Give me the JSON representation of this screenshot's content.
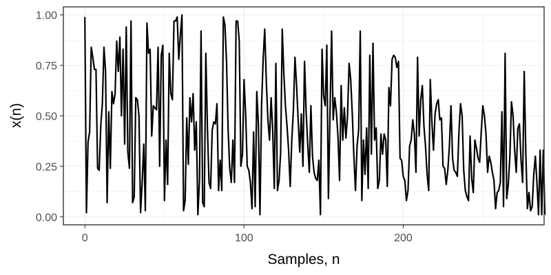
{
  "chart_data": {
    "type": "line",
    "title": "",
    "xlabel": "Samples, n",
    "ylabel": "x(n)",
    "xlim": [
      -13.5,
      288.5
    ],
    "ylim": [
      -0.04,
      1.04
    ],
    "x_ticks": [
      0,
      100,
      200
    ],
    "x_tick_labels": [
      "0",
      "100",
      "200"
    ],
    "y_ticks": [
      0,
      0.25,
      0.5,
      0.75,
      1.0
    ],
    "y_tick_labels": [
      "0.00",
      "0.25",
      "0.50",
      "0.75",
      "1.00"
    ],
    "grid": true,
    "legend": "none",
    "series": [
      {
        "color": "#000000",
        "values": [
          0.99,
          0.02,
          0.37,
          0.42,
          0.84,
          0.79,
          0.73,
          0.73,
          0.24,
          0.23,
          0.45,
          0.56,
          0.84,
          0.72,
          0.07,
          0.52,
          0.24,
          0.62,
          0.56,
          0.61,
          0.87,
          0.72,
          0.89,
          0.5,
          0.83,
          0.36,
          0.94,
          0.32,
          0.24,
          0.97,
          0.07,
          0.1,
          0.59,
          0.58,
          0.5,
          0.02,
          0.17,
          0.36,
          0.03,
          0.96,
          0.81,
          0.83,
          0.4,
          0.55,
          0.54,
          0.53,
          0.84,
          0.25,
          0.8,
          0.85,
          0.08,
          0.38,
          0.16,
          0.81,
          0.61,
          0.58,
          0.97,
          0.97,
          0.99,
          0.78,
          0.9,
          1.0,
          0.03,
          0.08,
          0.49,
          0.26,
          0.59,
          0.47,
          0.61,
          0.33,
          0.47,
          0.01,
          0.18,
          0.92,
          0.07,
          0.05,
          0.81,
          0.44,
          0.17,
          0.14,
          0.43,
          0.47,
          0.46,
          0.56,
          0.13,
          0.28,
          0.13,
          0.99,
          0.95,
          0.77,
          0.43,
          0.24,
          0.17,
          0.38,
          0.17,
          0.97,
          0.97,
          0.87,
          0.25,
          0.31,
          0.68,
          0.51,
          0.25,
          0.23,
          0.17,
          0.04,
          0.42,
          0.05,
          0.62,
          0.46,
          0.01,
          0.55,
          0.78,
          0.93,
          0.67,
          0.48,
          0.38,
          0.59,
          0.43,
          0.14,
          0.76,
          0.13,
          0.18,
          0.32,
          0.93,
          0.71,
          0.55,
          0.45,
          0.33,
          0.15,
          0.38,
          0.53,
          0.79,
          0.65,
          0.48,
          0.32,
          0.51,
          0.25,
          0.77,
          0.52,
          0.36,
          0.22,
          0.55,
          0.3,
          0.22,
          0.19,
          0.18,
          0.28,
          0.01,
          0.83,
          0.6,
          0.55,
          0.85,
          0.09,
          0.51,
          0.92,
          0.48,
          0.59,
          0.52,
          0.4,
          0.18,
          0.65,
          0.38,
          0.54,
          0.39,
          0.5,
          0.76,
          0.68,
          0.51,
          0.3,
          0.13,
          0.35,
          0.43,
          0.92,
          0.08,
          0.38,
          0.21,
          0.44,
          0.14,
          0.8,
          0.31,
          0.86,
          0.38,
          0.44,
          0.14,
          0.18,
          0.41,
          0.31,
          0.41,
          0.38,
          0.15,
          0.64,
          0.55,
          0.78,
          0.8,
          0.79,
          0.74,
          0.77,
          0.29,
          0.28,
          0.2,
          0.18,
          0.08,
          0.13,
          0.35,
          0.38,
          0.48,
          0.41,
          0.22,
          0.79,
          0.4,
          0.58,
          0.65,
          0.45,
          0.35,
          0.21,
          0.13,
          0.68,
          0.47,
          0.33,
          0.51,
          0.56,
          0.58,
          0.48,
          0.49,
          0.25,
          0.24,
          0.16,
          0.23,
          0.35,
          0.55,
          0.29,
          0.23,
          0.22,
          0.2,
          0.42,
          0.56,
          0.5,
          0.23,
          0.13,
          0.1,
          0.08,
          0.4,
          0.19,
          0.12,
          0.38,
          0.34,
          0.29,
          0.27,
          0.42,
          0.55,
          0.5,
          0.41,
          0.22,
          0.3,
          0.27,
          0.22,
          0.18,
          0.04,
          0.12,
          0.13,
          0.17,
          0.52,
          0.05,
          0.81,
          0.09,
          0.16,
          0.3,
          0.57,
          0.5,
          0.33,
          0.22,
          0.44,
          0.46,
          0.28,
          0.17,
          0.72,
          0.32,
          0.04,
          0.12,
          0.03,
          0.05,
          0.21,
          0.3,
          0.17,
          0.01,
          0.33,
          0.01,
          0.33,
          0.01
        ]
      }
    ]
  }
}
